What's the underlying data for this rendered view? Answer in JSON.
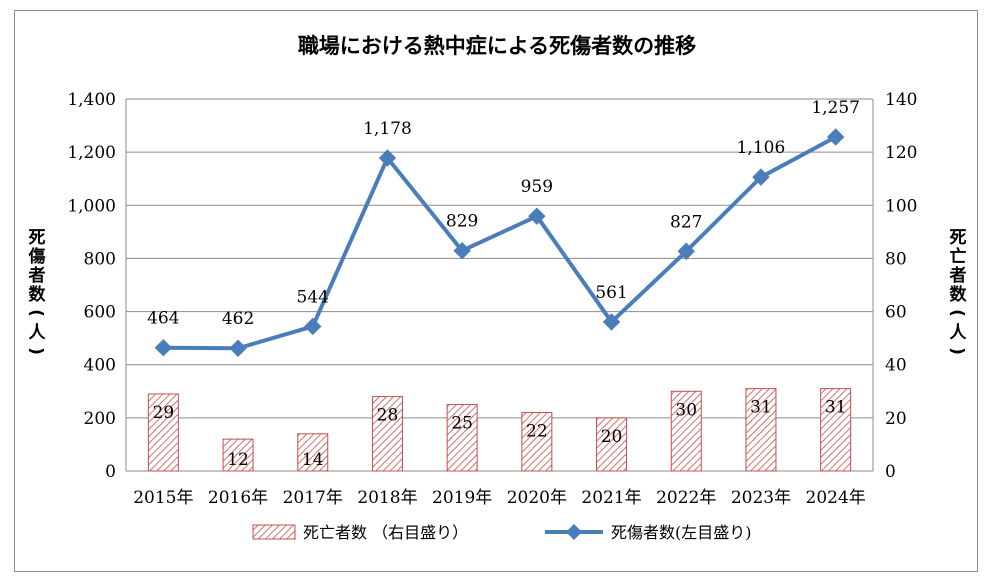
{
  "chart_data": {
    "type": "bar+line",
    "title": "職場における熱中症による死傷者数の推移",
    "categories": [
      "2015年",
      "2016年",
      "2017年",
      "2018年",
      "2019年",
      "2020年",
      "2021年",
      "2022年",
      "2023年",
      "2024年"
    ],
    "series": [
      {
        "name": "死亡者数 （右目盛り）",
        "type": "bar",
        "axis": "right",
        "values": [
          29,
          12,
          14,
          28,
          25,
          22,
          20,
          30,
          31,
          31
        ],
        "value_labels": [
          "29",
          "12",
          "14",
          "28",
          "25",
          "22",
          "20",
          "30",
          "31",
          "31"
        ],
        "color": "#c0504d",
        "fill_pattern": "diagonal-hatch"
      },
      {
        "name": "死傷者数(左目盛り)",
        "type": "line",
        "axis": "left",
        "marker": "diamond",
        "values": [
          464,
          462,
          544,
          1178,
          829,
          959,
          561,
          827,
          1106,
          1257
        ],
        "value_labels": [
          "464",
          "462",
          "544",
          "1,178",
          "829",
          "959",
          "561",
          "827",
          "1,106",
          "1,257"
        ],
        "color": "#4a7ebb"
      }
    ],
    "y_left": {
      "label": "死傷者数(人)",
      "range": [
        0,
        1400
      ],
      "ticks": [
        0,
        200,
        400,
        600,
        800,
        1000,
        1200,
        1400
      ],
      "tick_labels": [
        "0",
        "200",
        "400",
        "600",
        "800",
        "1,000",
        "1,200",
        "1,400"
      ]
    },
    "y_right": {
      "label": "死亡者数(人)",
      "range": [
        0,
        140
      ],
      "ticks": [
        0,
        20,
        40,
        60,
        80,
        100,
        120,
        140
      ],
      "tick_labels": [
        "0",
        "20",
        "40",
        "60",
        "80",
        "100",
        "120",
        "140"
      ]
    },
    "grid": "horizontal",
    "legend_position": "bottom"
  }
}
